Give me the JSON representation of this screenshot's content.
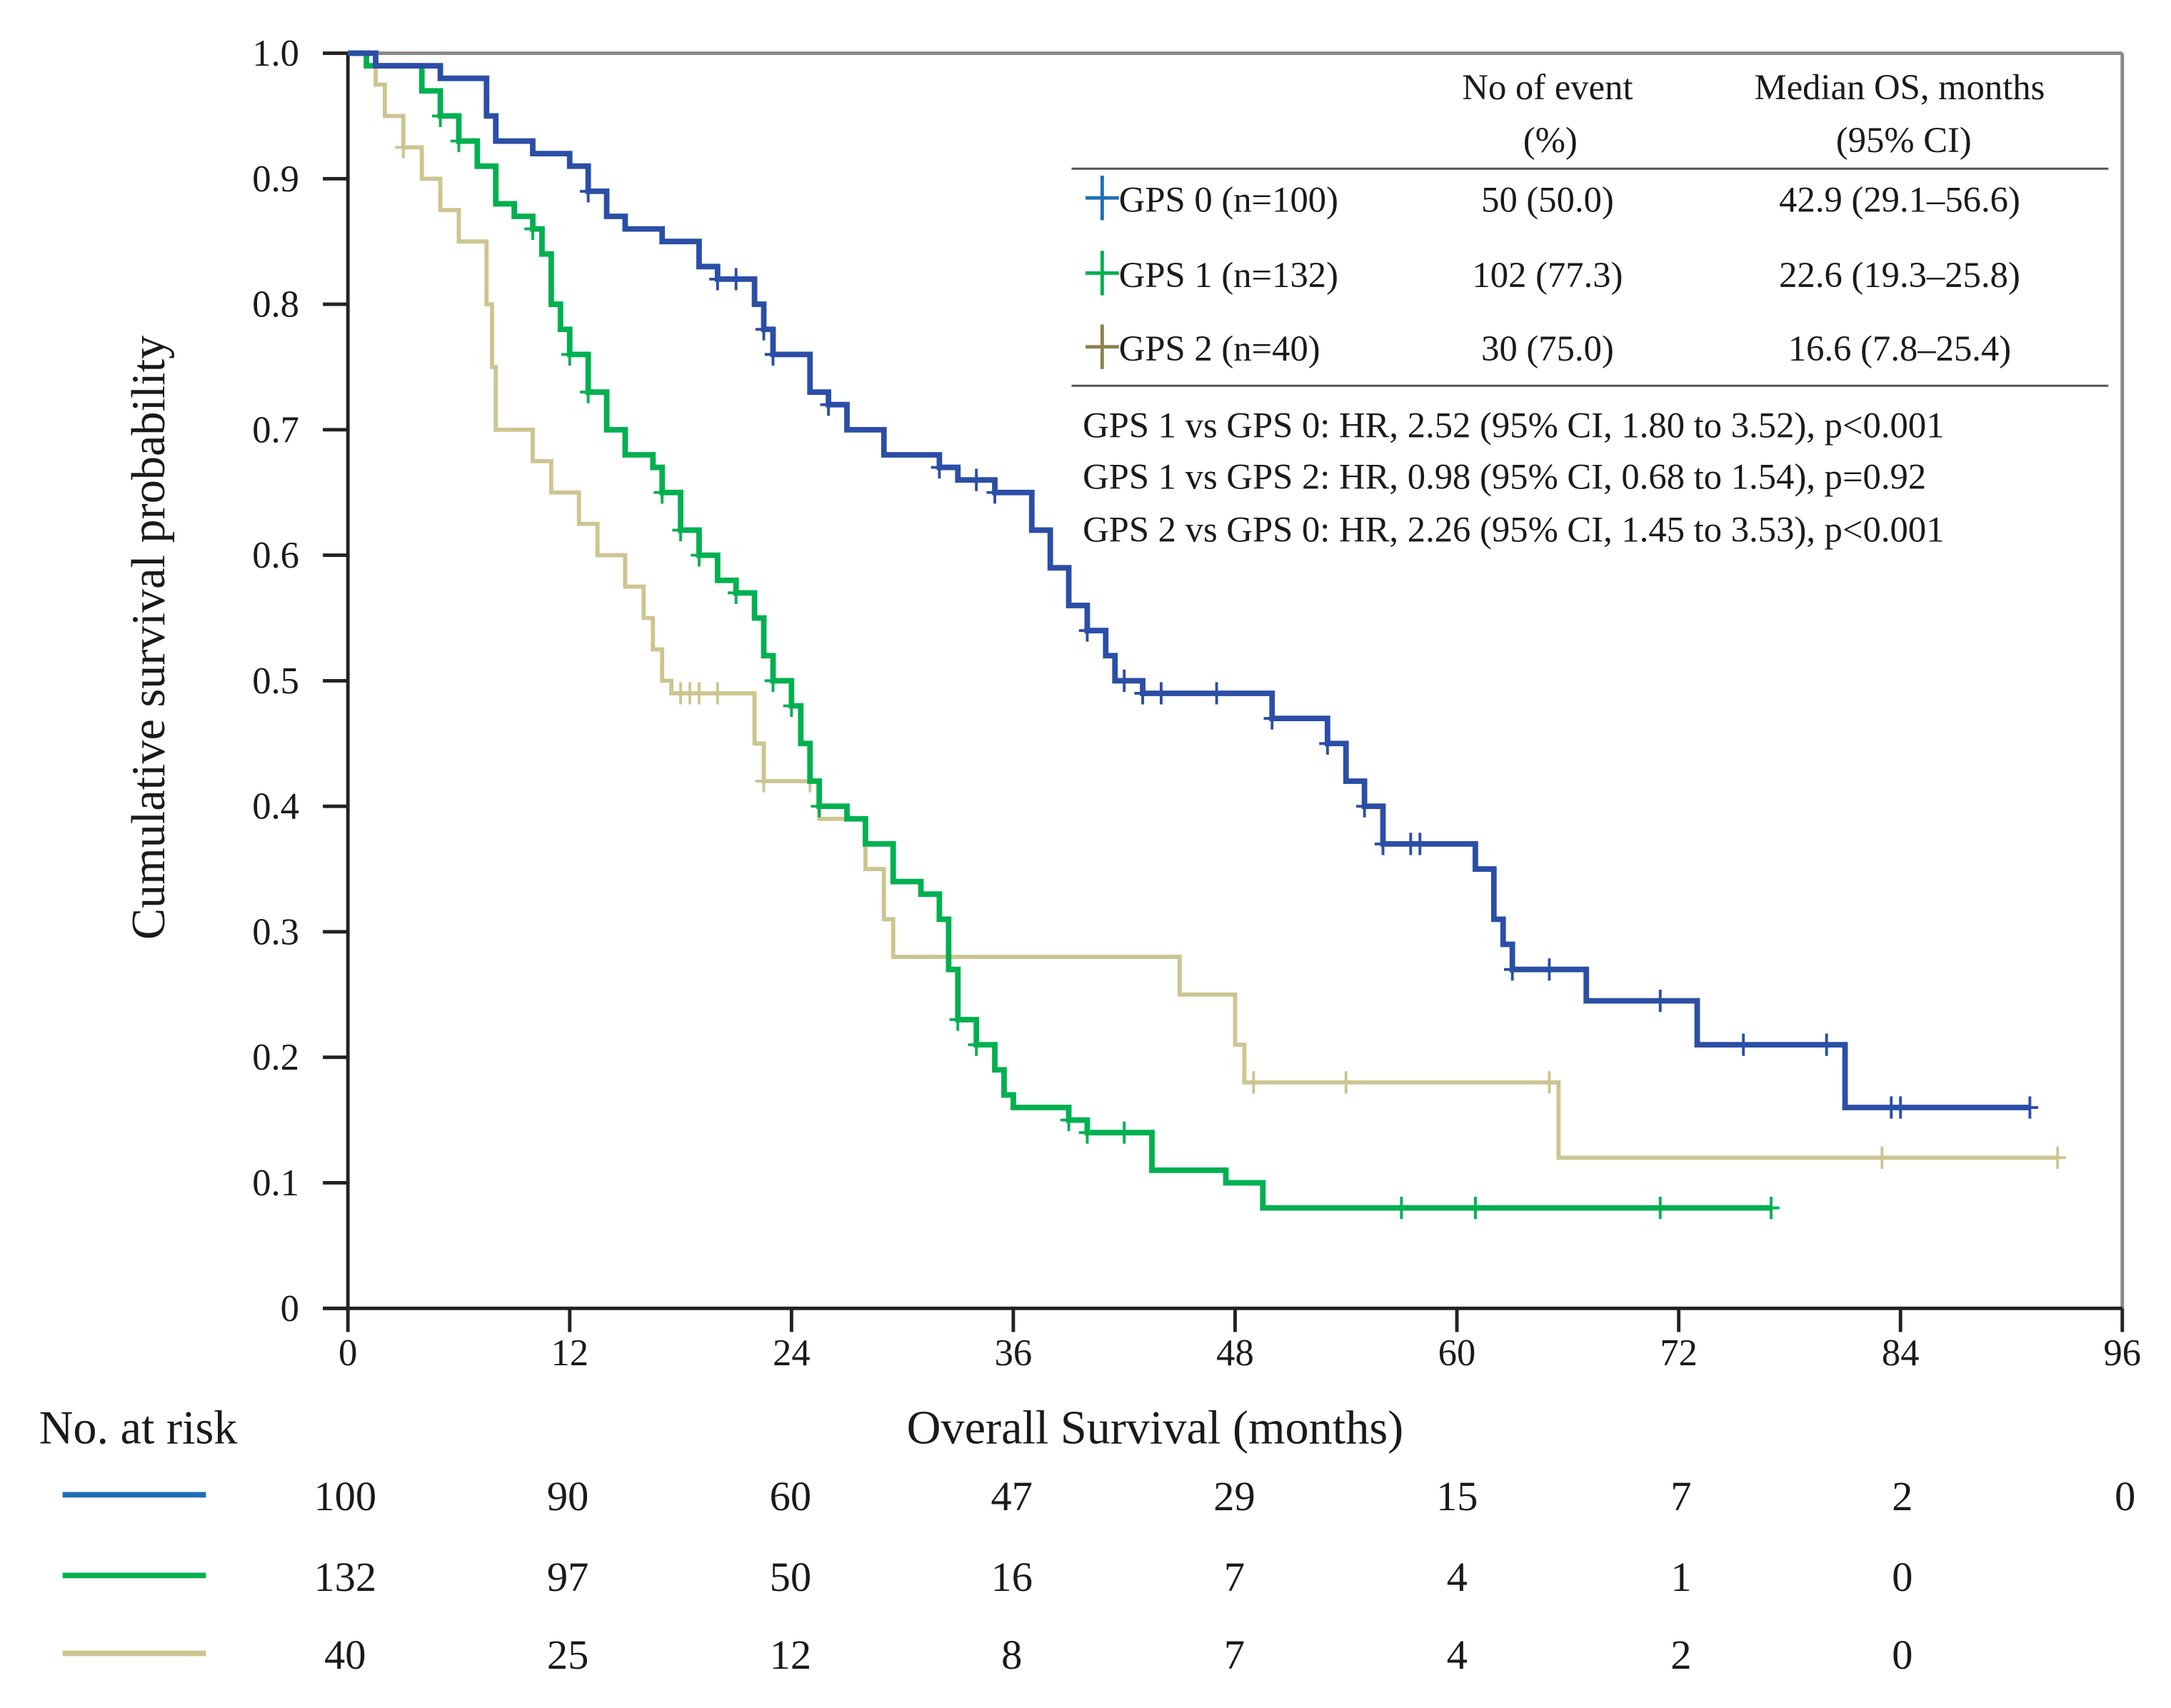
{
  "chart_data": {
    "type": "line",
    "subtype": "kaplan-meier",
    "xlabel": "Overall Survival (months)",
    "ylabel": "Cumulative survival probability",
    "xlim": [
      0,
      96
    ],
    "ylim": [
      0,
      1.0
    ],
    "xticks": [
      "0",
      "12",
      "24",
      "36",
      "48",
      "60",
      "72",
      "84",
      "96"
    ],
    "yticks": [
      "0",
      "0.1",
      "0.2",
      "0.3",
      "0.4",
      "0.5",
      "0.6",
      "0.7",
      "0.8",
      "0.9",
      "1.0"
    ],
    "grid": false,
    "legend_placement": "top-right",
    "table_headers": {
      "events_line1": "No of event",
      "events_line2": "(%)",
      "median_line1": "Median  OS, months",
      "median_line2": "(95% CI)"
    },
    "series": [
      {
        "name": "GPS 0 (n=100)",
        "events": "50 (50.0)",
        "median": "42.9  (29.1–56.6)",
        "color": "#2b4ea6",
        "legend_color": "#1f6fb5",
        "end": 91,
        "steps": [
          [
            0,
            1.0
          ],
          [
            1.5,
            0.99
          ],
          [
            5,
            0.98
          ],
          [
            7.5,
            0.95
          ],
          [
            8,
            0.93
          ],
          [
            10,
            0.92
          ],
          [
            12,
            0.91
          ],
          [
            13,
            0.89
          ],
          [
            14,
            0.87
          ],
          [
            15,
            0.86
          ],
          [
            17,
            0.85
          ],
          [
            19,
            0.83
          ],
          [
            20,
            0.82
          ],
          [
            22,
            0.8
          ],
          [
            22.5,
            0.78
          ],
          [
            23,
            0.76
          ],
          [
            25,
            0.73
          ],
          [
            26,
            0.72
          ],
          [
            27,
            0.7
          ],
          [
            29,
            0.68
          ],
          [
            32,
            0.67
          ],
          [
            33,
            0.66
          ],
          [
            35,
            0.65
          ],
          [
            37,
            0.62
          ],
          [
            38,
            0.59
          ],
          [
            39,
            0.56
          ],
          [
            40,
            0.54
          ],
          [
            41,
            0.52
          ],
          [
            41.5,
            0.5
          ],
          [
            43,
            0.49
          ],
          [
            50,
            0.47
          ],
          [
            53,
            0.45
          ],
          [
            54,
            0.42
          ],
          [
            55,
            0.4
          ],
          [
            56,
            0.37
          ],
          [
            61,
            0.35
          ],
          [
            62,
            0.31
          ],
          [
            62.5,
            0.29
          ],
          [
            63,
            0.27
          ],
          [
            67,
            0.245
          ],
          [
            73,
            0.21
          ],
          [
            81,
            0.16
          ]
        ],
        "censored": [
          13,
          20,
          21,
          22.5,
          23,
          26,
          32,
          34,
          35,
          40,
          42,
          43,
          44,
          47,
          50,
          53,
          55,
          56,
          57.5,
          58,
          63,
          65,
          71,
          75.5,
          80,
          83.5,
          84,
          91
        ]
      },
      {
        "name": "GPS 1 (n=132)",
        "events": "102  (77.3)",
        "median": "22.6  (19.3–25.8)",
        "color": "#00b050",
        "legend_color": "#00b050",
        "end": 77,
        "steps": [
          [
            0,
            1.0
          ],
          [
            1,
            0.99
          ],
          [
            4,
            0.97
          ],
          [
            5,
            0.95
          ],
          [
            6,
            0.93
          ],
          [
            7,
            0.91
          ],
          [
            8,
            0.88
          ],
          [
            9,
            0.87
          ],
          [
            10,
            0.86
          ],
          [
            10.5,
            0.84
          ],
          [
            11,
            0.8
          ],
          [
            11.5,
            0.78
          ],
          [
            12,
            0.76
          ],
          [
            13,
            0.73
          ],
          [
            14,
            0.7
          ],
          [
            15,
            0.68
          ],
          [
            16.5,
            0.67
          ],
          [
            17,
            0.65
          ],
          [
            18,
            0.62
          ],
          [
            19,
            0.6
          ],
          [
            20,
            0.58
          ],
          [
            21,
            0.57
          ],
          [
            22,
            0.55
          ],
          [
            22.5,
            0.52
          ],
          [
            23,
            0.5
          ],
          [
            24,
            0.48
          ],
          [
            24.5,
            0.45
          ],
          [
            25,
            0.42
          ],
          [
            25.5,
            0.4
          ],
          [
            27,
            0.39
          ],
          [
            28,
            0.37
          ],
          [
            29.5,
            0.34
          ],
          [
            31,
            0.33
          ],
          [
            32,
            0.31
          ],
          [
            32.5,
            0.27
          ],
          [
            33,
            0.23
          ],
          [
            34,
            0.21
          ],
          [
            35,
            0.19
          ],
          [
            35.5,
            0.17
          ],
          [
            36,
            0.16
          ],
          [
            39,
            0.15
          ],
          [
            40,
            0.14
          ],
          [
            43.5,
            0.11
          ],
          [
            47.5,
            0.1
          ],
          [
            49.5,
            0.08
          ]
        ],
        "censored": [
          5,
          6,
          10,
          12,
          13,
          17,
          18,
          19,
          21,
          23,
          24,
          25.5,
          33,
          34,
          39,
          40,
          42,
          57,
          61,
          71,
          77
        ]
      },
      {
        "name": "GPS 2 (n=40)",
        "events": "30  (75.0)",
        "median": "16.6  (7.8–25.4)",
        "color": "#cdc591",
        "legend_color": "#8c8250",
        "end": 92.5,
        "steps": [
          [
            0,
            1.0
          ],
          [
            1.5,
            0.975
          ],
          [
            2,
            0.95
          ],
          [
            3,
            0.925
          ],
          [
            4,
            0.9
          ],
          [
            5,
            0.875
          ],
          [
            6,
            0.85
          ],
          [
            7.5,
            0.8
          ],
          [
            7.8,
            0.75
          ],
          [
            8,
            0.7
          ],
          [
            10,
            0.675
          ],
          [
            11,
            0.65
          ],
          [
            12.5,
            0.625
          ],
          [
            13.5,
            0.6
          ],
          [
            15,
            0.575
          ],
          [
            16,
            0.55
          ],
          [
            16.5,
            0.525
          ],
          [
            17,
            0.5
          ],
          [
            17.5,
            0.49
          ],
          [
            22,
            0.45
          ],
          [
            22.5,
            0.42
          ],
          [
            25.5,
            0.39
          ],
          [
            28,
            0.35
          ],
          [
            29,
            0.31
          ],
          [
            29.5,
            0.28
          ],
          [
            45,
            0.25
          ],
          [
            48,
            0.21
          ],
          [
            48.5,
            0.18
          ],
          [
            65.5,
            0.12
          ]
        ],
        "censored": [
          3,
          18,
          18.5,
          19,
          20,
          22.5,
          25,
          49,
          54,
          65,
          83,
          92.5
        ]
      }
    ],
    "annotations": [
      "GPS 1 vs GPS 0: HR, 2.52 (95% CI, 1.80 to 3.52), p<0.001",
      "GPS 1 vs GPS 2: HR, 0.98 (95% CI, 0.68 to 1.54), p=0.92",
      "GPS 2 vs GPS 0: HR, 2.26 (95% CI, 1.45 to 3.53), p<0.001"
    ],
    "at_risk": {
      "title": "No. at risk",
      "rows": [
        {
          "color": "#1f6fb5",
          "values": [
            "100",
            "90",
            "60",
            "47",
            "29",
            "15",
            "7",
            "2",
            "0"
          ]
        },
        {
          "color": "#00b050",
          "values": [
            "132",
            "97",
            "50",
            "16",
            "7",
            "4",
            "1",
            "0"
          ]
        },
        {
          "color": "#cdc591",
          "values": [
            "40",
            "25",
            "12",
            "8",
            "7",
            "4",
            "2",
            "0"
          ]
        }
      ]
    }
  }
}
